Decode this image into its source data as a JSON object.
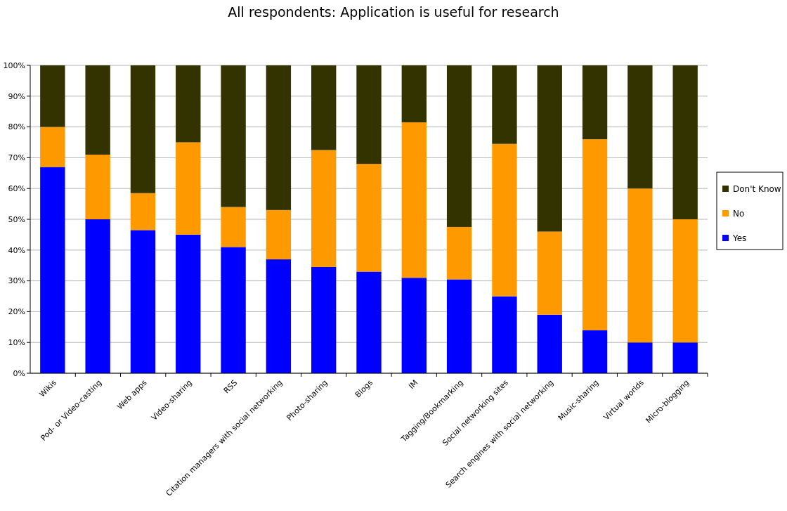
{
  "chart_data": {
    "type": "bar",
    "title": "All respondents: Application is useful for research",
    "stacked": true,
    "categories": [
      "Wikis",
      "Pod- or Video-casting",
      "Web apps",
      "Video-sharing",
      "RSS",
      "Citation managers with social networking",
      "Photo-sharing",
      "Blogs",
      "IM",
      "Tagging/Bookmarking",
      "Social networking sites",
      "Search engines with social networking",
      "Music-sharing",
      "Virtual worlds",
      "Micro-blogging"
    ],
    "series": [
      {
        "name": "Yes",
        "color": "#0000ff",
        "values": [
          67,
          50,
          46.5,
          45,
          41,
          37,
          34.5,
          33,
          31,
          30.5,
          25,
          19,
          14,
          10,
          10
        ]
      },
      {
        "name": "No",
        "color": "#ff9900",
        "values": [
          13,
          21,
          12,
          30,
          13,
          16,
          38,
          35,
          50.5,
          17,
          49.5,
          27,
          62,
          50,
          40
        ]
      },
      {
        "name": "Don't Know",
        "color": "#333300",
        "values": [
          20,
          29,
          41.5,
          25,
          46,
          47,
          27.5,
          32,
          18.5,
          52.5,
          25.5,
          54,
          24,
          40,
          50
        ]
      }
    ],
    "ylim": [
      0,
      100
    ],
    "yticks": [
      {
        "value": 0,
        "label": "0%"
      },
      {
        "value": 10,
        "label": "10%"
      },
      {
        "value": 20,
        "label": "20%"
      },
      {
        "value": 30,
        "label": "30%"
      },
      {
        "value": 40,
        "label": "40%"
      },
      {
        "value": 50,
        "label": "50%"
      },
      {
        "value": 60,
        "label": "60%"
      },
      {
        "value": 70,
        "label": "70%"
      },
      {
        "value": 80,
        "label": "80%"
      },
      {
        "value": 90,
        "label": "90%"
      },
      {
        "value": 100,
        "label": "100%"
      }
    ],
    "grid": "y",
    "legend": "right"
  }
}
